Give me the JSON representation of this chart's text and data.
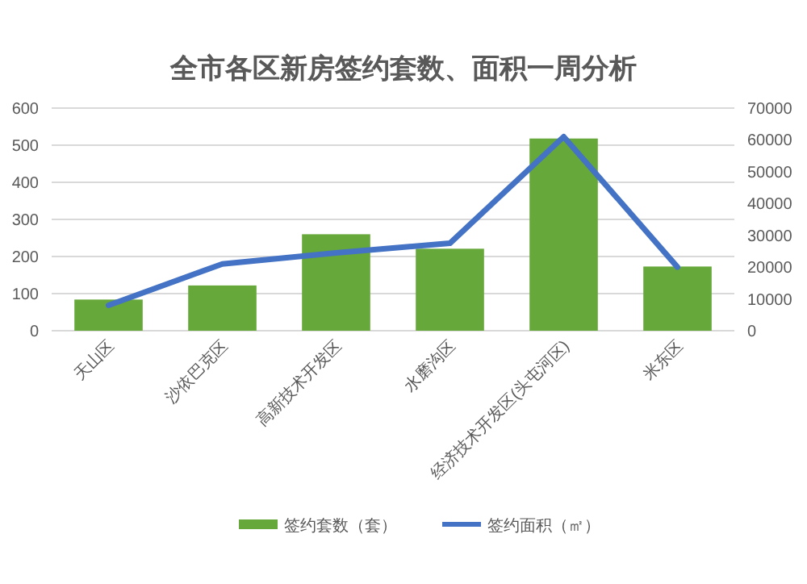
{
  "chart_data": {
    "type": "bar",
    "title": "全市各区新房签约套数、面积一周分析",
    "categories": [
      "天山区",
      "沙依巴克区",
      "高新技术开发区",
      "水磨沟区",
      "经济技术开发区(头屯河区)",
      "米东区"
    ],
    "series": [
      {
        "name": "签约套数（套）",
        "color": "#67a83a",
        "values": [
          84,
          122,
          260,
          221,
          518,
          173
        ]
      },
      {
        "name": "签约面积（㎡）",
        "color": "#4472c4",
        "type": "line",
        "axis": "y2",
        "values": [
          8000,
          21000,
          24500,
          27500,
          61000,
          20000
        ]
      }
    ],
    "ylim": [
      0,
      600
    ],
    "yticks": [
      0,
      100,
      200,
      300,
      400,
      500,
      600
    ],
    "y2lim": [
      0,
      70000
    ],
    "y2ticks": [
      0,
      10000,
      20000,
      30000,
      40000,
      50000,
      60000,
      70000
    ],
    "grid": "y",
    "legend": "bottom"
  }
}
